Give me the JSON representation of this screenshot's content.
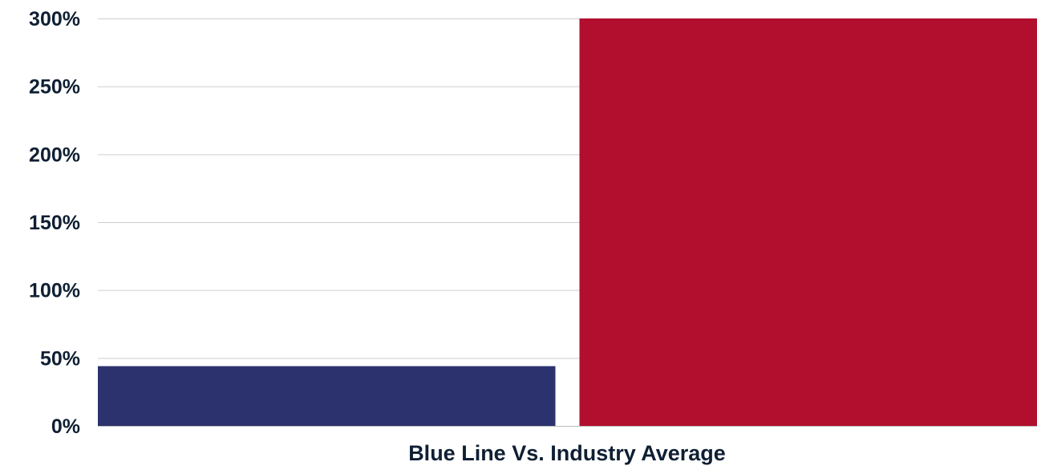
{
  "chart_data": {
    "type": "bar",
    "categories": [
      "",
      ""
    ],
    "series": [
      {
        "values": [
          44,
          300
        ]
      }
    ],
    "bar_colors": [
      "#2b326d",
      "#b20f2f"
    ],
    "xlabel": "Blue Line Vs. Industry Average",
    "ylabel": "",
    "ylim": [
      0,
      300
    ],
    "yticks": [
      "0%",
      "50%",
      "100%",
      "150%",
      "200%",
      "250%",
      "300%"
    ],
    "grid": true,
    "legend": "none"
  }
}
